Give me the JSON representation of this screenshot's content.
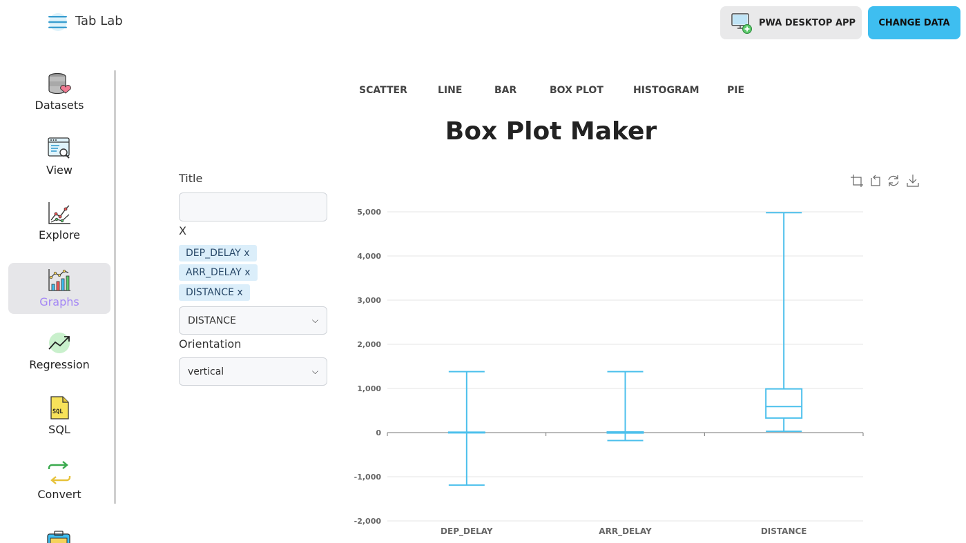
{
  "header": {
    "app_title": "Tab Lab",
    "pwa_label": "PWA DESKTOP APP",
    "change_label": "CHANGE DATA"
  },
  "sidebar": {
    "items": [
      {
        "label": "Datasets",
        "icon": "database-heart-icon"
      },
      {
        "label": "View",
        "icon": "window-search-icon"
      },
      {
        "label": "Explore",
        "icon": "line-chart-icon"
      },
      {
        "label": "Graphs",
        "icon": "bar-line-chart-icon",
        "active": true
      },
      {
        "label": "Regression",
        "icon": "trend-up-icon"
      },
      {
        "label": "SQL",
        "icon": "sql-file-icon"
      },
      {
        "label": "Convert",
        "icon": "swap-arrows-icon"
      }
    ]
  },
  "tabs": [
    "SCATTER",
    "LINE",
    "BAR",
    "BOX PLOT",
    "HISTOGRAM",
    "PIE"
  ],
  "page_title": "Box Plot Maker",
  "form": {
    "title_label": "Title",
    "title_value": "",
    "x_label": "X",
    "chips": [
      "DEP_DELAY x",
      "ARR_DELAY x",
      "DISTANCE x"
    ],
    "x_select_value": "DISTANCE",
    "orientation_label": "Orientation",
    "orientation_value": "vertical"
  },
  "colors": {
    "accent": "#3ebef0",
    "active_nav": "#a487f5",
    "box_stroke": "#4cc0ec"
  },
  "chart_data": {
    "type": "box",
    "categories": [
      "DEP_DELAY",
      "ARR_DELAY",
      "DISTANCE"
    ],
    "boxes": [
      {
        "category": "DEP_DELAY",
        "min": -1190,
        "q1": 0,
        "median": 5,
        "q3": 10,
        "max": 1380
      },
      {
        "category": "ARR_DELAY",
        "min": -180,
        "q1": -10,
        "median": 0,
        "q3": 15,
        "max": 1380
      },
      {
        "category": "DISTANCE",
        "min": 30,
        "q1": 330,
        "median": 590,
        "q3": 990,
        "max": 4980
      }
    ],
    "y_ticks": [
      "5,000",
      "4,000",
      "3,000",
      "2,000",
      "1,000",
      "0",
      "-1,000",
      "-2,000"
    ],
    "y_tick_values": [
      5000,
      4000,
      3000,
      2000,
      1000,
      0,
      -1000,
      -2000
    ],
    "ylim": [
      -2000,
      5000
    ],
    "grid": true
  }
}
